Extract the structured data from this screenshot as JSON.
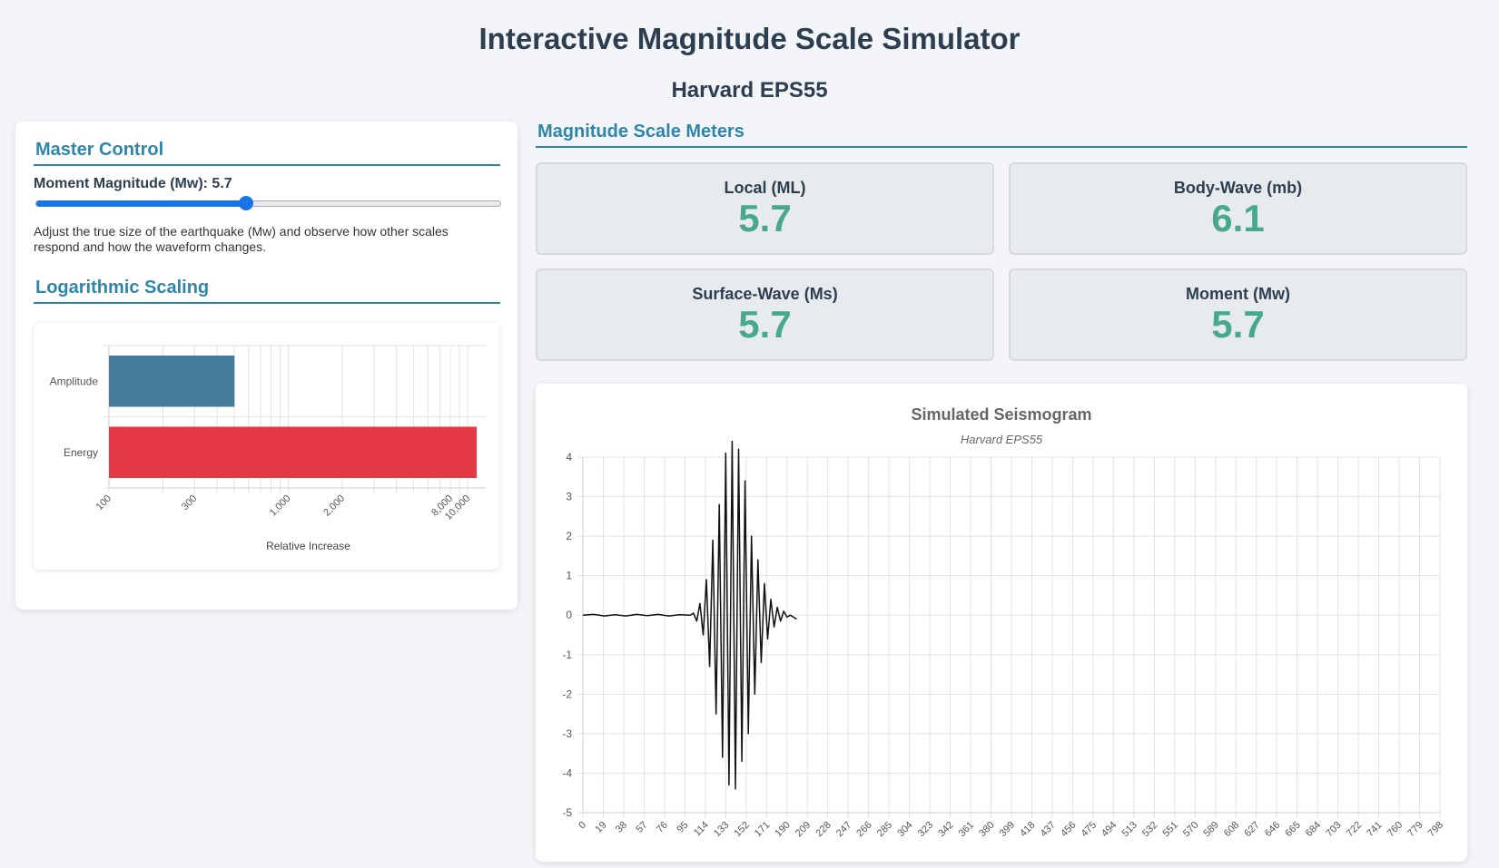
{
  "header": {
    "title": "Interactive Magnitude Scale Simulator",
    "subtitle": "Harvard EPS55"
  },
  "master_control": {
    "heading": "Master Control",
    "slider_label": "Moment Magnitude (Mw): 5.7",
    "slider_value": 5.7,
    "slider_min": 3,
    "slider_max": 9,
    "description": "Adjust the true size of the earthquake (Mw) and observe how other scales respond and how the waveform changes.",
    "accent_color": "#1a73e8"
  },
  "log_scaling": {
    "heading": "Logarithmic Scaling"
  },
  "meters": {
    "heading": "Magnitude Scale Meters",
    "value_color": "#45a98a",
    "items": [
      {
        "label": "Local (ML)",
        "value": "5.7"
      },
      {
        "label": "Body-Wave (mb)",
        "value": "6.1"
      },
      {
        "label": "Surface-Wave (Ms)",
        "value": "5.7"
      },
      {
        "label": "Moment (Mw)",
        "value": "5.7"
      }
    ]
  },
  "chart_data": [
    {
      "type": "bar",
      "orientation": "horizontal",
      "categories": [
        "Amplitude",
        "Energy"
      ],
      "values": [
        501,
        11220
      ],
      "colors": [
        "#457b9d",
        "#e63946"
      ],
      "xlabel": "Relative Increase",
      "ylabel": "",
      "xscale": "log",
      "xlim": [
        100,
        12600
      ],
      "xticks": [
        {
          "v": 100,
          "label": "100"
        },
        {
          "v": 300,
          "label": "300"
        },
        {
          "v": 1000,
          "label": "1,000"
        },
        {
          "v": 2000,
          "label": "2,000"
        },
        {
          "v": 8000,
          "label": "8,000"
        },
        {
          "v": 10000,
          "label": "10,000"
        }
      ],
      "grid": true
    },
    {
      "type": "line",
      "title": "Simulated Seismogram",
      "subtitle": "Harvard EPS55",
      "xlabel": "",
      "ylabel": "",
      "xlim": [
        0,
        798
      ],
      "ylim": [
        -5,
        4
      ],
      "yticks": [
        4,
        3,
        2,
        1,
        0,
        -1,
        -2,
        -3,
        -4,
        -5
      ],
      "x_tick_step": 19,
      "grid": true,
      "line_color": "#111111",
      "series": [
        {
          "x": [
            0,
            10,
            20,
            30,
            40,
            50,
            60,
            70,
            80,
            90,
            100,
            103,
            106,
            109,
            112,
            115,
            118,
            121,
            124,
            127,
            130,
            133,
            136,
            139,
            142,
            145,
            148,
            151,
            154,
            157,
            160,
            163,
            166,
            169,
            172,
            175,
            178,
            181,
            184,
            187,
            190,
            193,
            196,
            199
          ],
          "y": [
            0,
            0.02,
            -0.02,
            0.01,
            -0.02,
            0.02,
            -0.01,
            0.02,
            -0.02,
            0.01,
            0.0,
            0.05,
            -0.15,
            0.3,
            -0.5,
            0.9,
            -1.3,
            1.9,
            -2.5,
            2.8,
            -3.6,
            4.1,
            -4.3,
            4.4,
            -4.4,
            4.2,
            -3.7,
            3.4,
            -3.0,
            2.0,
            -2.0,
            1.4,
            -1.2,
            0.8,
            -0.6,
            0.4,
            -0.3,
            0.2,
            -0.15,
            0.1,
            -0.05,
            0.0,
            -0.05,
            -0.1
          ]
        }
      ]
    }
  ]
}
